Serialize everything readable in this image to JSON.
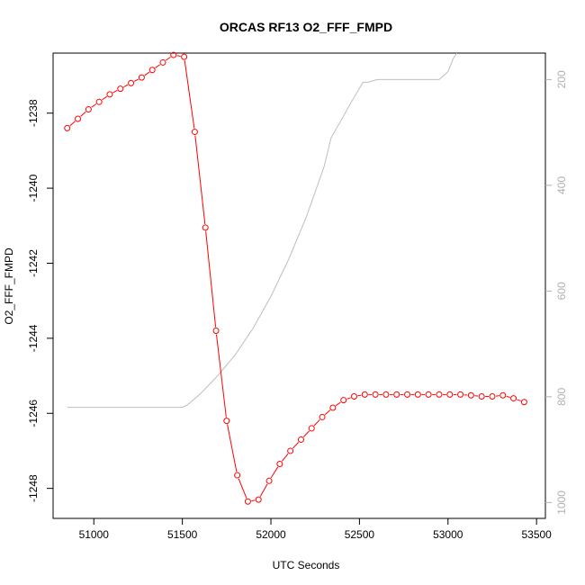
{
  "chart_data": {
    "type": "line",
    "title": "ORCAS RF13 O2_FFF_FMPD",
    "xlabel": "UTC Seconds",
    "ylabel": "O2_FFF_FMPD",
    "xlim": [
      50770,
      53550
    ],
    "ylim": [
      -1248.8,
      -1236.4
    ],
    "x_ticks": [
      51000,
      51500,
      52000,
      52500,
      53000,
      53500
    ],
    "y_ticks": [
      -1238,
      -1240,
      -1242,
      -1244,
      -1246,
      -1248
    ],
    "y2_lim": [
      1030,
      150
    ],
    "y2_ticks": [
      200,
      400,
      600,
      800,
      1000
    ],
    "colors": {
      "primary_series": "#ff0000",
      "secondary_series": "#bebebe",
      "right_axis": "#b0b0b0"
    },
    "series": [
      {
        "axis": "left",
        "style": "line+points",
        "x": [
          50850,
          50910,
          50970,
          51030,
          51090,
          51150,
          51210,
          51270,
          51330,
          51390,
          51450,
          51510,
          51570,
          51630,
          51690,
          51750,
          51810,
          51870,
          51930,
          51990,
          52050,
          52110,
          52170,
          52230,
          52290,
          52350,
          52410,
          52470,
          52530,
          52590,
          52650,
          52710,
          52770,
          52830,
          52890,
          52950,
          53010,
          53070,
          53130,
          53190,
          53250,
          53310,
          53370,
          53430
        ],
        "y": [
          -1238.4,
          -1238.15,
          -1237.9,
          -1237.7,
          -1237.5,
          -1237.35,
          -1237.2,
          -1237.05,
          -1236.85,
          -1236.65,
          -1236.45,
          -1236.5,
          -1238.5,
          -1241.05,
          -1243.8,
          -1246.2,
          -1247.65,
          -1248.35,
          -1248.3,
          -1247.8,
          -1247.35,
          -1247.0,
          -1246.7,
          -1246.4,
          -1246.1,
          -1245.85,
          -1245.65,
          -1245.55,
          -1245.5,
          -1245.5,
          -1245.5,
          -1245.5,
          -1245.5,
          -1245.5,
          -1245.5,
          -1245.5,
          -1245.5,
          -1245.5,
          -1245.52,
          -1245.55,
          -1245.55,
          -1245.52,
          -1245.6,
          -1245.7
        ]
      },
      {
        "axis": "right",
        "style": "line",
        "x": [
          50850,
          51000,
          51200,
          51400,
          51500,
          51530,
          51600,
          51700,
          51800,
          51900,
          52000,
          52100,
          52200,
          52300,
          52340,
          52400,
          52450,
          52520,
          52550,
          52600,
          52700,
          52800,
          52950,
          53000,
          53030,
          53050
        ],
        "y": [
          820,
          820,
          820,
          820,
          820,
          815,
          795,
          760,
          720,
          670,
          610,
          540,
          460,
          365,
          310,
          275,
          245,
          205,
          205,
          200,
          200,
          200,
          200,
          185,
          160,
          150
        ]
      }
    ]
  }
}
